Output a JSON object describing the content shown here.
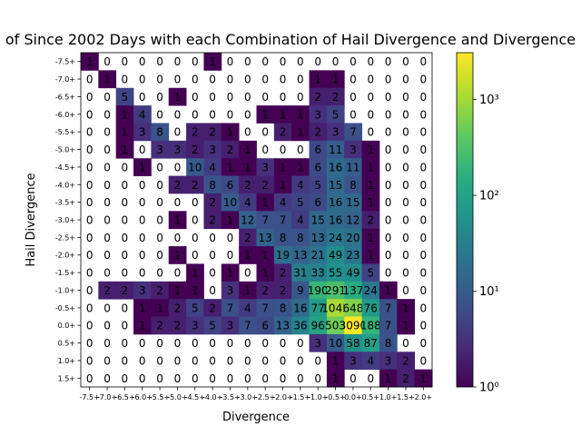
{
  "chart_data": {
    "type": "heatmap",
    "title": "of Since 2002 Days with each Combination of Hail Divergence and Divergence",
    "xlabel": "Divergence",
    "ylabel": "Hail Divergence",
    "x_categories": [
      "-7.5+",
      "-7.0+",
      "-6.5+",
      "-6.0+",
      "-5.5+",
      "-5.0+",
      "-4.5+",
      "-4.0+",
      "-3.5+",
      "-3.0+",
      "-2.5+",
      "-2.0+",
      "-1.5+",
      "-1.0+",
      "-0.5+",
      "0.0+",
      "0.5+",
      "1.0+",
      "1.5+",
      "2.0+"
    ],
    "y_categories": [
      "-7.5+",
      "-7.0+",
      "-6.5+",
      "-6.0+",
      "-5.5+",
      "-5.0+",
      "-4.5+",
      "-4.0+",
      "-3.5+",
      "-3.0+",
      "-2.5+",
      "-2.0+",
      "-1.5+",
      "-1.0+",
      "-0.5+",
      "0.0+",
      "0.5+",
      "1.0+",
      "1.5+"
    ],
    "values": [
      [
        1,
        0,
        0,
        0,
        0,
        0,
        0,
        1,
        0,
        0,
        0,
        0,
        0,
        0,
        0,
        0,
        0,
        0,
        0,
        0
      ],
      [
        0,
        1,
        0,
        0,
        0,
        0,
        0,
        0,
        0,
        0,
        0,
        0,
        0,
        1,
        1,
        0,
        0,
        0,
        0,
        0
      ],
      [
        0,
        0,
        5,
        0,
        0,
        1,
        0,
        0,
        0,
        0,
        0,
        0,
        0,
        2,
        2,
        0,
        0,
        0,
        0,
        0
      ],
      [
        0,
        0,
        1,
        4,
        0,
        0,
        0,
        0,
        0,
        0,
        1,
        1,
        1,
        3,
        5,
        0,
        0,
        0,
        0,
        0
      ],
      [
        0,
        0,
        1,
        3,
        8,
        0,
        2,
        2,
        1,
        0,
        0,
        2,
        1,
        2,
        3,
        7,
        0,
        0,
        0,
        0
      ],
      [
        0,
        0,
        1,
        0,
        3,
        3,
        2,
        3,
        2,
        1,
        0,
        0,
        0,
        6,
        11,
        3,
        1,
        0,
        0,
        0
      ],
      [
        0,
        0,
        0,
        1,
        0,
        0,
        10,
        4,
        1,
        1,
        3,
        1,
        1,
        6,
        16,
        11,
        1,
        0,
        0,
        0
      ],
      [
        0,
        0,
        0,
        0,
        0,
        2,
        2,
        8,
        6,
        2,
        2,
        1,
        4,
        5,
        15,
        8,
        1,
        0,
        0,
        0
      ],
      [
        0,
        0,
        0,
        0,
        0,
        0,
        0,
        2,
        10,
        4,
        1,
        4,
        5,
        6,
        16,
        15,
        1,
        0,
        0,
        0
      ],
      [
        0,
        0,
        0,
        0,
        0,
        1,
        0,
        2,
        1,
        12,
        7,
        7,
        4,
        15,
        16,
        12,
        2,
        0,
        0,
        0
      ],
      [
        0,
        0,
        0,
        0,
        0,
        0,
        0,
        0,
        0,
        2,
        13,
        8,
        8,
        13,
        24,
        20,
        1,
        0,
        0,
        0
      ],
      [
        0,
        0,
        0,
        0,
        0,
        1,
        0,
        0,
        0,
        1,
        1,
        19,
        13,
        21,
        49,
        23,
        1,
        0,
        0,
        0
      ],
      [
        0,
        0,
        0,
        0,
        0,
        0,
        1,
        0,
        1,
        0,
        1,
        2,
        31,
        33,
        55,
        49,
        5,
        0,
        0,
        0
      ],
      [
        0,
        2,
        2,
        3,
        2,
        1,
        1,
        0,
        3,
        1,
        2,
        2,
        9,
        190,
        291,
        137,
        24,
        1,
        0,
        0
      ],
      [
        0,
        0,
        0,
        1,
        1,
        2,
        5,
        2,
        7,
        4,
        7,
        8,
        16,
        77,
        1045,
        648,
        76,
        7,
        1,
        0
      ],
      [
        0,
        0,
        0,
        1,
        2,
        2,
        3,
        5,
        3,
        7,
        6,
        13,
        36,
        96,
        503,
        3090,
        188,
        7,
        1,
        0
      ],
      [
        0,
        0,
        0,
        0,
        0,
        0,
        0,
        0,
        0,
        0,
        0,
        0,
        0,
        3,
        10,
        58,
        87,
        8,
        0,
        0
      ],
      [
        0,
        0,
        0,
        0,
        0,
        0,
        0,
        0,
        0,
        0,
        0,
        0,
        0,
        0,
        1,
        3,
        4,
        3,
        2,
        0
      ],
      [
        0,
        0,
        0,
        0,
        0,
        0,
        0,
        0,
        0,
        0,
        0,
        0,
        0,
        0,
        1,
        0,
        0,
        1,
        2,
        1
      ]
    ],
    "colorbar": {
      "scale": "log",
      "range": [
        1,
        3090
      ],
      "ticks": [
        "10⁰",
        "10¹",
        "10²",
        "10³"
      ]
    },
    "colormap": "viridis",
    "grid": false
  }
}
